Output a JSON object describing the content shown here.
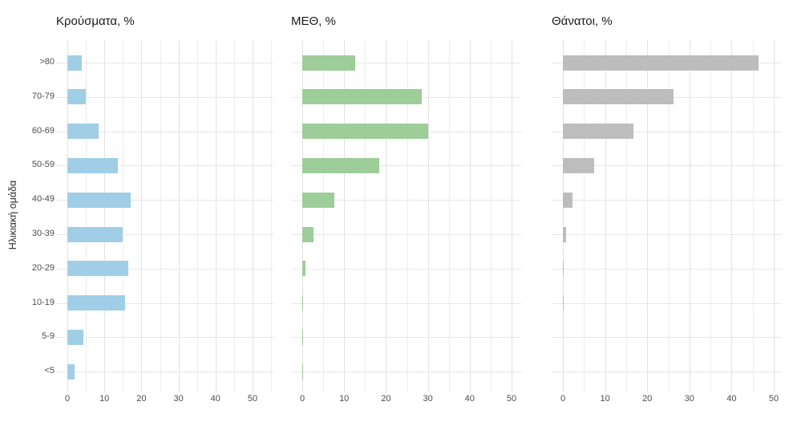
{
  "chart_data": {
    "type": "bar",
    "orientation": "horizontal",
    "title": "",
    "ylabel": "Ηλικιακή ομάδα",
    "categories": [
      ">80",
      "70-79",
      "60-69",
      "50-59",
      "40-49",
      "30-39",
      "20-29",
      "10-19",
      "5-9",
      "<5"
    ],
    "x_ticks": [
      0,
      10,
      20,
      30,
      40,
      50
    ],
    "xlim": [
      0,
      55
    ],
    "grid": "light gray, vertical minor lines every 5 units, horizontal line per category",
    "legend_position": "none",
    "panels": [
      {
        "title": "Κρούσματα, %",
        "color": "#a0cee7",
        "values": [
          3.8,
          5.0,
          8.5,
          13.7,
          17.0,
          15.0,
          16.5,
          15.5,
          4.4,
          2.0
        ]
      },
      {
        "title": "ΜΕΘ, %",
        "color": "#9dcd98",
        "values": [
          12.6,
          28.6,
          30.0,
          18.3,
          7.7,
          2.6,
          0.7,
          0.2,
          0.2,
          0.2
        ]
      },
      {
        "title": "Θάνατοι, %",
        "color": "#bdbdbd",
        "values": [
          46.4,
          26.3,
          16.7,
          7.4,
          2.3,
          0.8,
          0.2,
          0.1,
          0.0,
          0.0
        ]
      }
    ]
  }
}
